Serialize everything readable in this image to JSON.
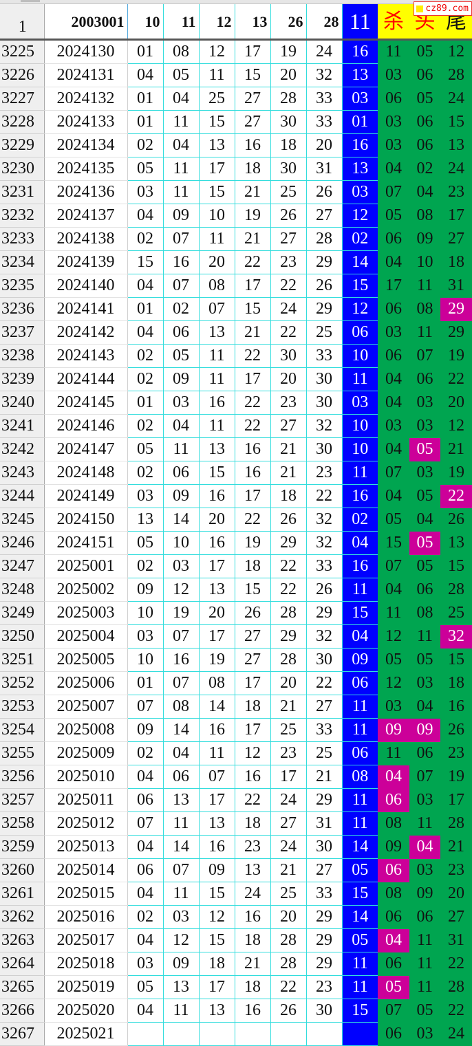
{
  "header": {
    "row_number": "1",
    "period": "2003001",
    "numbers": [
      "10",
      "11",
      "12",
      "13",
      "26",
      "28"
    ],
    "blue": "11",
    "labels": [
      "杀",
      "头",
      "尾"
    ]
  },
  "watermark": "cz89.com",
  "colors": {
    "blue": "#0000ff",
    "green": "#00a550",
    "highlight": "#cc0099",
    "header_yellow": "#ffff00",
    "grid": "#33dddd"
  },
  "rows": [
    {
      "r": "3225",
      "p": "2024130",
      "n": [
        "01",
        "08",
        "12",
        "17",
        "19",
        "24"
      ],
      "b": "16",
      "k": [
        "11",
        "05",
        "12"
      ],
      "hl": []
    },
    {
      "r": "3226",
      "p": "2024131",
      "n": [
        "04",
        "05",
        "11",
        "15",
        "20",
        "32"
      ],
      "b": "13",
      "k": [
        "03",
        "06",
        "28"
      ],
      "hl": []
    },
    {
      "r": "3227",
      "p": "2024132",
      "n": [
        "01",
        "04",
        "25",
        "27",
        "28",
        "33"
      ],
      "b": "03",
      "k": [
        "06",
        "05",
        "24"
      ],
      "hl": []
    },
    {
      "r": "3228",
      "p": "2024133",
      "n": [
        "01",
        "11",
        "15",
        "27",
        "30",
        "33"
      ],
      "b": "01",
      "k": [
        "03",
        "06",
        "15"
      ],
      "hl": []
    },
    {
      "r": "3229",
      "p": "2024134",
      "n": [
        "02",
        "04",
        "13",
        "16",
        "18",
        "20"
      ],
      "b": "16",
      "k": [
        "03",
        "06",
        "13"
      ],
      "hl": []
    },
    {
      "r": "3230",
      "p": "2024135",
      "n": [
        "05",
        "11",
        "17",
        "18",
        "30",
        "31"
      ],
      "b": "13",
      "k": [
        "04",
        "02",
        "24"
      ],
      "hl": []
    },
    {
      "r": "3231",
      "p": "2024136",
      "n": [
        "03",
        "11",
        "15",
        "21",
        "25",
        "26"
      ],
      "b": "03",
      "k": [
        "07",
        "04",
        "23"
      ],
      "hl": []
    },
    {
      "r": "3232",
      "p": "2024137",
      "n": [
        "04",
        "09",
        "10",
        "19",
        "26",
        "27"
      ],
      "b": "12",
      "k": [
        "05",
        "08",
        "17"
      ],
      "hl": []
    },
    {
      "r": "3233",
      "p": "2024138",
      "n": [
        "02",
        "07",
        "11",
        "21",
        "27",
        "28"
      ],
      "b": "02",
      "k": [
        "06",
        "09",
        "27"
      ],
      "hl": []
    },
    {
      "r": "3234",
      "p": "2024139",
      "n": [
        "15",
        "16",
        "20",
        "22",
        "23",
        "29"
      ],
      "b": "14",
      "k": [
        "04",
        "10",
        "18"
      ],
      "hl": []
    },
    {
      "r": "3235",
      "p": "2024140",
      "n": [
        "04",
        "07",
        "08",
        "17",
        "22",
        "26"
      ],
      "b": "15",
      "k": [
        "17",
        "11",
        "31"
      ],
      "hl": []
    },
    {
      "r": "3236",
      "p": "2024141",
      "n": [
        "01",
        "02",
        "07",
        "15",
        "24",
        "29"
      ],
      "b": "12",
      "k": [
        "06",
        "08",
        "29"
      ],
      "hl": [
        2
      ]
    },
    {
      "r": "3237",
      "p": "2024142",
      "n": [
        "04",
        "06",
        "13",
        "21",
        "22",
        "25"
      ],
      "b": "06",
      "k": [
        "03",
        "11",
        "29"
      ],
      "hl": []
    },
    {
      "r": "3238",
      "p": "2024143",
      "n": [
        "02",
        "05",
        "11",
        "22",
        "30",
        "33"
      ],
      "b": "10",
      "k": [
        "06",
        "07",
        "19"
      ],
      "hl": []
    },
    {
      "r": "3239",
      "p": "2024144",
      "n": [
        "02",
        "09",
        "11",
        "17",
        "20",
        "30"
      ],
      "b": "11",
      "k": [
        "04",
        "06",
        "22"
      ],
      "hl": []
    },
    {
      "r": "3240",
      "p": "2024145",
      "n": [
        "01",
        "03",
        "16",
        "22",
        "23",
        "30"
      ],
      "b": "03",
      "k": [
        "04",
        "03",
        "20"
      ],
      "hl": []
    },
    {
      "r": "3241",
      "p": "2024146",
      "n": [
        "02",
        "04",
        "11",
        "22",
        "27",
        "32"
      ],
      "b": "10",
      "k": [
        "03",
        "03",
        "12"
      ],
      "hl": []
    },
    {
      "r": "3242",
      "p": "2024147",
      "n": [
        "05",
        "11",
        "13",
        "16",
        "21",
        "30"
      ],
      "b": "10",
      "k": [
        "04",
        "05",
        "21"
      ],
      "hl": [
        1
      ]
    },
    {
      "r": "3243",
      "p": "2024148",
      "n": [
        "02",
        "06",
        "15",
        "16",
        "21",
        "23"
      ],
      "b": "11",
      "k": [
        "07",
        "03",
        "19"
      ],
      "hl": []
    },
    {
      "r": "3244",
      "p": "2024149",
      "n": [
        "03",
        "09",
        "16",
        "17",
        "18",
        "22"
      ],
      "b": "16",
      "k": [
        "04",
        "05",
        "22"
      ],
      "hl": [
        2
      ]
    },
    {
      "r": "3245",
      "p": "2024150",
      "n": [
        "13",
        "14",
        "20",
        "22",
        "26",
        "32"
      ],
      "b": "02",
      "k": [
        "05",
        "04",
        "26"
      ],
      "hl": []
    },
    {
      "r": "3246",
      "p": "2024151",
      "n": [
        "05",
        "10",
        "16",
        "19",
        "29",
        "32"
      ],
      "b": "04",
      "k": [
        "15",
        "05",
        "13"
      ],
      "hl": [
        1
      ]
    },
    {
      "r": "3247",
      "p": "2025001",
      "n": [
        "02",
        "03",
        "17",
        "18",
        "22",
        "33"
      ],
      "b": "16",
      "k": [
        "07",
        "05",
        "15"
      ],
      "hl": []
    },
    {
      "r": "3248",
      "p": "2025002",
      "n": [
        "09",
        "12",
        "13",
        "15",
        "22",
        "26"
      ],
      "b": "11",
      "k": [
        "04",
        "06",
        "28"
      ],
      "hl": []
    },
    {
      "r": "3249",
      "p": "2025003",
      "n": [
        "10",
        "19",
        "20",
        "26",
        "28",
        "29"
      ],
      "b": "15",
      "k": [
        "11",
        "08",
        "25"
      ],
      "hl": []
    },
    {
      "r": "3250",
      "p": "2025004",
      "n": [
        "03",
        "07",
        "17",
        "27",
        "29",
        "32"
      ],
      "b": "04",
      "k": [
        "12",
        "11",
        "32"
      ],
      "hl": [
        2
      ]
    },
    {
      "r": "3251",
      "p": "2025005",
      "n": [
        "10",
        "16",
        "19",
        "27",
        "28",
        "30"
      ],
      "b": "09",
      "k": [
        "05",
        "05",
        "15"
      ],
      "hl": []
    },
    {
      "r": "3252",
      "p": "2025006",
      "n": [
        "01",
        "07",
        "08",
        "17",
        "20",
        "22"
      ],
      "b": "06",
      "k": [
        "12",
        "03",
        "18"
      ],
      "hl": []
    },
    {
      "r": "3253",
      "p": "2025007",
      "n": [
        "07",
        "08",
        "14",
        "18",
        "21",
        "27"
      ],
      "b": "11",
      "k": [
        "03",
        "04",
        "16"
      ],
      "hl": []
    },
    {
      "r": "3254",
      "p": "2025008",
      "n": [
        "09",
        "14",
        "16",
        "17",
        "25",
        "33"
      ],
      "b": "11",
      "k": [
        "09",
        "09",
        "26"
      ],
      "hl": [
        0,
        1
      ]
    },
    {
      "r": "3255",
      "p": "2025009",
      "n": [
        "02",
        "04",
        "11",
        "12",
        "23",
        "25"
      ],
      "b": "06",
      "k": [
        "11",
        "06",
        "23"
      ],
      "hl": []
    },
    {
      "r": "3256",
      "p": "2025010",
      "n": [
        "04",
        "06",
        "07",
        "16",
        "17",
        "21"
      ],
      "b": "08",
      "k": [
        "04",
        "07",
        "19"
      ],
      "hl": [
        0
      ]
    },
    {
      "r": "3257",
      "p": "2025011",
      "n": [
        "06",
        "13",
        "17",
        "22",
        "24",
        "29"
      ],
      "b": "11",
      "k": [
        "06",
        "03",
        "17"
      ],
      "hl": [
        0
      ]
    },
    {
      "r": "3258",
      "p": "2025012",
      "n": [
        "07",
        "11",
        "13",
        "18",
        "27",
        "31"
      ],
      "b": "11",
      "k": [
        "08",
        "11",
        "28"
      ],
      "hl": []
    },
    {
      "r": "3259",
      "p": "2025013",
      "n": [
        "04",
        "14",
        "16",
        "23",
        "24",
        "30"
      ],
      "b": "14",
      "k": [
        "09",
        "04",
        "21"
      ],
      "hl": [
        1
      ]
    },
    {
      "r": "3260",
      "p": "2025014",
      "n": [
        "06",
        "07",
        "09",
        "13",
        "21",
        "27"
      ],
      "b": "05",
      "k": [
        "06",
        "03",
        "23"
      ],
      "hl": [
        0
      ]
    },
    {
      "r": "3261",
      "p": "2025015",
      "n": [
        "04",
        "11",
        "15",
        "24",
        "25",
        "33"
      ],
      "b": "15",
      "k": [
        "08",
        "09",
        "20"
      ],
      "hl": []
    },
    {
      "r": "3262",
      "p": "2025016",
      "n": [
        "02",
        "03",
        "12",
        "16",
        "20",
        "29"
      ],
      "b": "14",
      "k": [
        "06",
        "06",
        "27"
      ],
      "hl": []
    },
    {
      "r": "3263",
      "p": "2025017",
      "n": [
        "04",
        "12",
        "15",
        "18",
        "28",
        "29"
      ],
      "b": "05",
      "k": [
        "04",
        "11",
        "31"
      ],
      "hl": [
        0
      ]
    },
    {
      "r": "3264",
      "p": "2025018",
      "n": [
        "03",
        "09",
        "18",
        "21",
        "28",
        "29"
      ],
      "b": "11",
      "k": [
        "06",
        "11",
        "22"
      ],
      "hl": []
    },
    {
      "r": "3265",
      "p": "2025019",
      "n": [
        "05",
        "13",
        "17",
        "18",
        "22",
        "23"
      ],
      "b": "11",
      "k": [
        "05",
        "11",
        "28"
      ],
      "hl": [
        0
      ]
    },
    {
      "r": "3266",
      "p": "2025020",
      "n": [
        "04",
        "11",
        "13",
        "16",
        "26",
        "30"
      ],
      "b": "15",
      "k": [
        "07",
        "05",
        "22"
      ],
      "hl": []
    },
    {
      "r": "3267",
      "p": "2025021",
      "n": [
        "",
        "",
        "",
        "",
        "",
        ""
      ],
      "b": "",
      "k": [
        "06",
        "03",
        "24"
      ],
      "hl": []
    }
  ]
}
